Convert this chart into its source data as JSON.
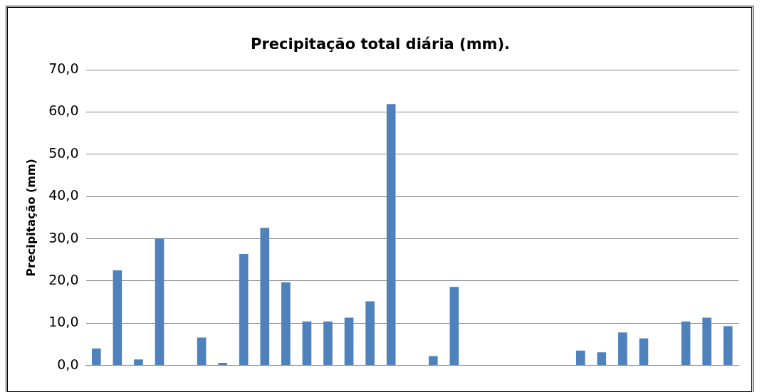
{
  "chart_data": {
    "type": "bar",
    "title": "Precipitação total diária (mm).",
    "ylabel": "Precipitação (mm)",
    "categories": [
      null,
      null,
      null,
      null,
      null,
      null,
      null,
      null,
      null,
      null,
      null,
      null,
      null,
      null,
      null,
      null,
      null,
      null,
      null,
      null,
      null,
      null,
      null,
      null,
      null,
      null,
      null,
      null,
      null,
      null,
      null
    ],
    "values": [
      4.0,
      22.5,
      1.4,
      30.0,
      0,
      6.6,
      0.6,
      26.4,
      32.6,
      19.7,
      10.4,
      10.4,
      11.3,
      15.2,
      61.9,
      0,
      2.2,
      18.6,
      0,
      0,
      0,
      0,
      0,
      3.5,
      3.1,
      7.8,
      6.4,
      0,
      10.4,
      11.3,
      9.3
    ],
    "color": "#4f81bd",
    "ylim": [
      0,
      70
    ],
    "yticks": [
      {
        "value": 0,
        "label": "0,0"
      },
      {
        "value": 10,
        "label": "10,0"
      },
      {
        "value": 20,
        "label": "20,0"
      },
      {
        "value": 30,
        "label": "30,0"
      },
      {
        "value": 40,
        "label": "40,0"
      },
      {
        "value": 50,
        "label": "50,0"
      },
      {
        "value": 60,
        "label": "60,0"
      },
      {
        "value": 70,
        "label": "70,0"
      }
    ],
    "grid": "y",
    "legend": false
  }
}
